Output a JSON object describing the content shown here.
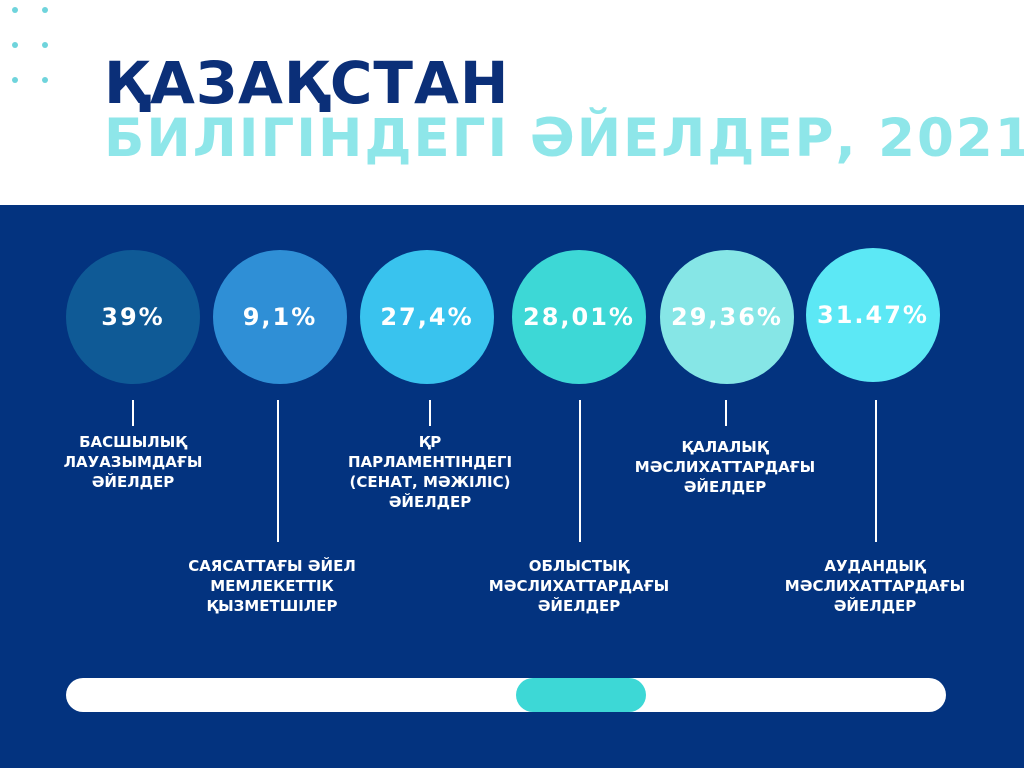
{
  "title": {
    "line1": "ҚАЗАҚСТАН",
    "line2": "БИЛІГІНДЕГІ ӘЙЕЛДЕР, 2021"
  },
  "colors": {
    "background_top": "#ffffff",
    "panel": "#03337f",
    "title_dark": "#0b2f78",
    "title_light": "#8ee6e9",
    "circles": [
      "#0f5a96",
      "#2f8fd6",
      "#39c3ee",
      "#3dd8d6",
      "#86e6e6",
      "#5ce8f5"
    ],
    "scroll_thumb": "#3dd8d6"
  },
  "stats": [
    {
      "value": "39%",
      "label": "БАСШЫЛЫҚ\nЛАУАЗЫМДАҒЫ\nӘЙЕЛДЕР"
    },
    {
      "value": "9,1%",
      "label": "САЯСАТТАҒЫ ӘЙЕЛ\nМЕМЛЕКЕТТІК\nҚЫЗМЕТШІЛЕР"
    },
    {
      "value": "27,4%",
      "label": "ҚР\nПАРЛАМЕНТІНДЕГІ\n(СЕНАТ, МӘЖІЛІС)\nӘЙЕЛДЕР"
    },
    {
      "value": "28,01%",
      "label": "ОБЛЫСТЫҚ\nМӘСЛИХАТТАРДАҒЫ\nӘЙЕЛДЕР"
    },
    {
      "value": "29,36%",
      "label": "ҚАЛАЛЫҚ\nМӘСЛИХАТТАРДАҒЫ\nӘЙЕЛДЕР"
    },
    {
      "value": "31.47%",
      "label": "АУДАНДЫҚ\nМӘСЛИХАТТАРДАҒЫ\nӘЙЕЛДЕР"
    }
  ]
}
